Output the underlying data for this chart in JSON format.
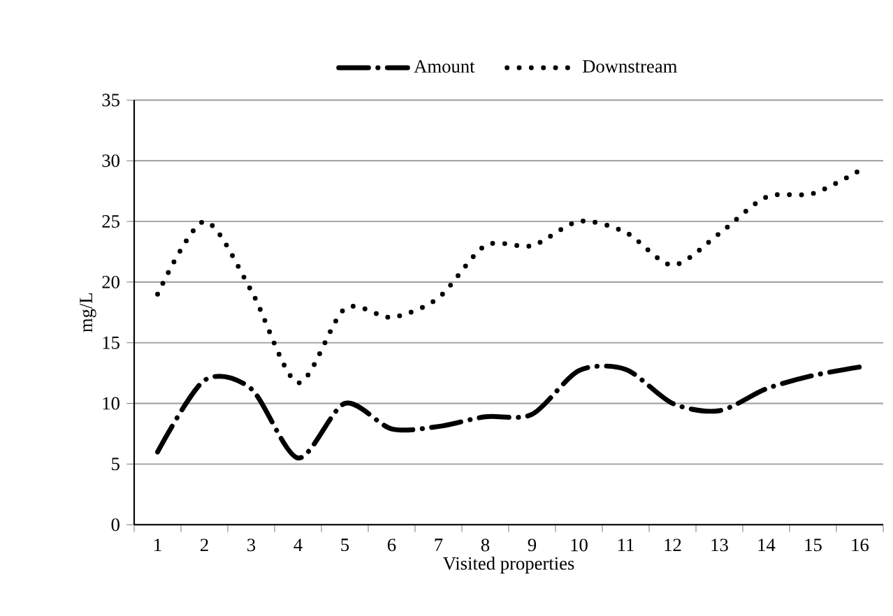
{
  "chart_data": {
    "type": "line",
    "xlabel": "Visited properties",
    "ylabel": "mg/L",
    "categories": [
      "1",
      "2",
      "3",
      "4",
      "5",
      "6",
      "7",
      "8",
      "9",
      "10",
      "11",
      "12",
      "13",
      "14",
      "15",
      "16"
    ],
    "series": [
      {
        "name": "Amount",
        "color": "#000000",
        "line_style": "dashed",
        "values": [
          6,
          11.9,
          11.2,
          5.5,
          10,
          7.9,
          8.1,
          8.9,
          9.1,
          12.7,
          12.8,
          10,
          9.4,
          11.2,
          12.3,
          13
        ]
      },
      {
        "name": "Downstream",
        "color": "#000000",
        "line_style": "dotted",
        "values": [
          19,
          25,
          19.3,
          11.7,
          17.8,
          17.1,
          18.7,
          23,
          23,
          25,
          24.1,
          21.4,
          24,
          27,
          27.3,
          29.2
        ]
      }
    ],
    "ylim": [
      0,
      35
    ],
    "yticks": [
      0,
      5,
      10,
      15,
      20,
      25,
      30,
      35
    ],
    "grid": "y",
    "legend": "top"
  }
}
